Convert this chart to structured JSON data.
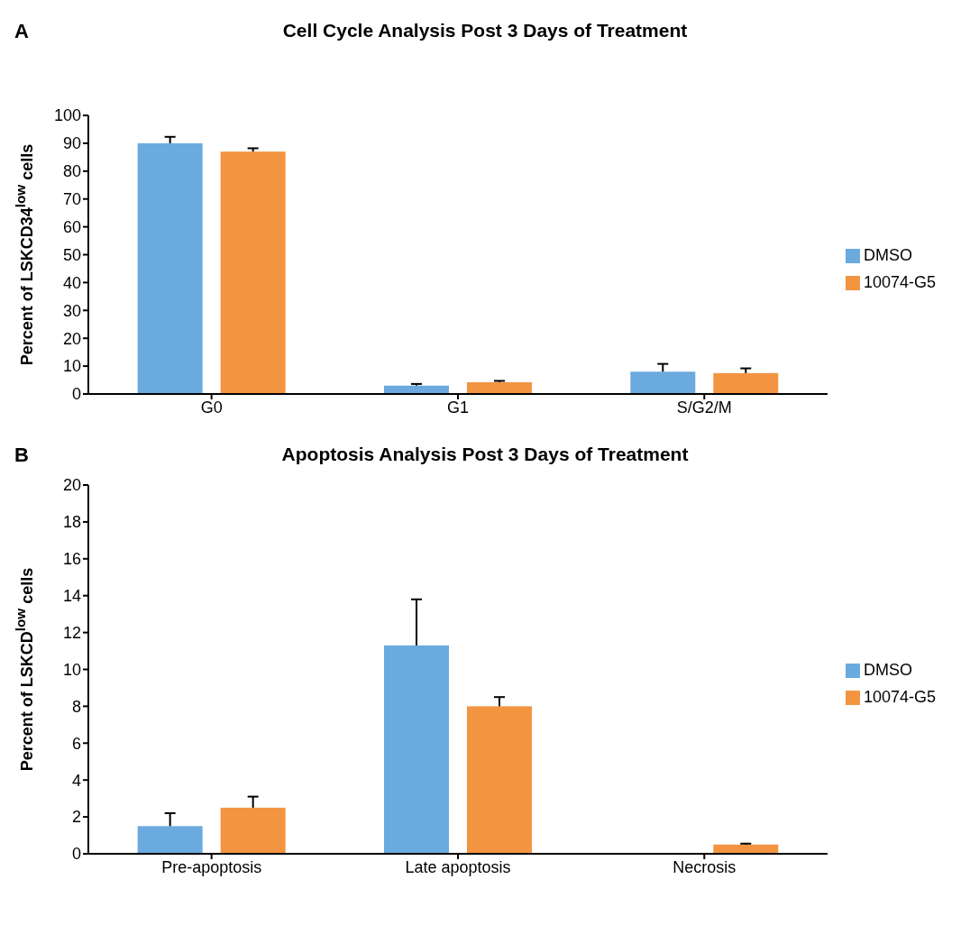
{
  "chart_data": [
    {
      "type": "bar",
      "title": "Cell Cycle Analysis Post 3 Days of Treatment",
      "annotations": [
        "A"
      ],
      "ylabel": "Percent of LSKCD34$^{low}$ cells",
      "categories": [
        "G0",
        "G1",
        "S/G2/M"
      ],
      "ylim": [
        0,
        100
      ],
      "yticks": [
        0,
        10,
        20,
        30,
        40,
        50,
        60,
        70,
        80,
        90,
        100
      ],
      "legend": "right",
      "series": [
        {
          "name": "DMSO",
          "color": "#6aaade",
          "values": [
            90,
            3,
            8
          ],
          "errors": [
            [
              90,
              92.3
            ],
            [
              3,
              3.6
            ],
            [
              8,
              10.8
            ]
          ]
        },
        {
          "name": "10074-G5",
          "color": "#f39440",
          "values": [
            87,
            4.2,
            7.5
          ],
          "errors": [
            [
              87,
              88.2
            ],
            [
              4.2,
              4.7
            ],
            [
              7.5,
              9.2
            ]
          ]
        }
      ]
    },
    {
      "type": "bar",
      "title": "Apoptosis Analysis Post 3 Days of Treatment",
      "annotations": [
        "B"
      ],
      "ylabel": "Percent of LSKCD$^{low}$ cells",
      "categories": [
        "Pre-apoptosis",
        "Late apoptosis",
        "Necrosis"
      ],
      "ylim": [
        0,
        20
      ],
      "yticks": [
        0,
        2,
        4,
        6,
        8,
        10,
        12,
        14,
        16,
        18,
        20
      ],
      "legend": "right",
      "series": [
        {
          "name": "DMSO",
          "color": "#6aaade",
          "values": [
            1.5,
            11.3,
            null
          ],
          "errors": [
            [
              1.5,
              2.2
            ],
            [
              11.3,
              13.8
            ],
            null
          ]
        },
        {
          "name": "10074-G5",
          "color": "#f39440",
          "values": [
            2.5,
            8.0,
            0.5
          ],
          "errors": [
            [
              2.5,
              3.1
            ],
            [
              8.0,
              8.5
            ],
            [
              0.5,
              0.55
            ]
          ]
        }
      ]
    }
  ]
}
